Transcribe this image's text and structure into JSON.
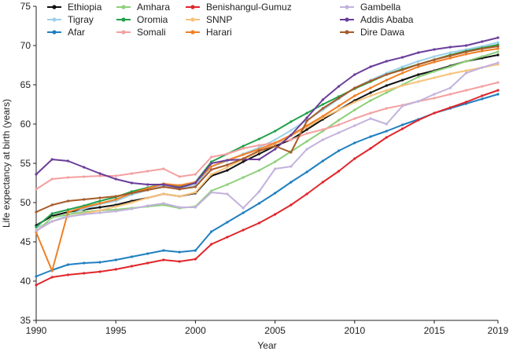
{
  "chart_data": {
    "type": "line",
    "title": "",
    "xlabel": "Year",
    "ylabel": "Life expectancy at birth (years)",
    "xlim": [
      1990,
      2019
    ],
    "ylim": [
      35,
      75
    ],
    "x_ticks": [
      1990,
      1995,
      2000,
      2005,
      2010,
      2015,
      2019
    ],
    "y_ticks": [
      35,
      40,
      45,
      50,
      55,
      60,
      65,
      70,
      75
    ],
    "grid": false,
    "legend_placement": "top",
    "x": [
      1990,
      1991,
      1992,
      1993,
      1994,
      1995,
      1996,
      1997,
      1998,
      1999,
      2000,
      2001,
      2002,
      2003,
      2004,
      2005,
      2006,
      2007,
      2008,
      2009,
      2010,
      2011,
      2012,
      2013,
      2014,
      2015,
      2016,
      2017,
      2018,
      2019
    ],
    "series": [
      {
        "name": "Ethiopia",
        "color": "#111111",
        "values": [
          47.1,
          48.3,
          48.8,
          49.1,
          49.4,
          49.7,
          50.2,
          50.6,
          51.1,
          50.8,
          51.2,
          53.4,
          54.1,
          55.2,
          56.2,
          57.2,
          58.0,
          59.3,
          60.6,
          61.8,
          63.0,
          64.0,
          64.9,
          65.6,
          66.3,
          66.8,
          67.4,
          68.0,
          68.4,
          68.8
        ]
      },
      {
        "name": "Tigray",
        "color": "#9fd0ea",
        "values": [
          46.8,
          47.6,
          48.4,
          49.2,
          49.8,
          50.2,
          51.0,
          51.6,
          52.2,
          51.8,
          52.2,
          54.6,
          55.3,
          56.2,
          57.0,
          58.0,
          59.2,
          60.5,
          61.8,
          63.2,
          64.6,
          65.6,
          66.5,
          67.3,
          68.0,
          68.6,
          69.1,
          69.5,
          69.9,
          70.4
        ]
      },
      {
        "name": "Afar",
        "color": "#1f7fc0",
        "values": [
          40.6,
          41.4,
          42.1,
          42.3,
          42.4,
          42.7,
          43.1,
          43.5,
          43.9,
          43.7,
          43.9,
          46.3,
          47.5,
          48.7,
          49.9,
          51.2,
          52.6,
          53.9,
          55.3,
          56.6,
          57.6,
          58.4,
          59.1,
          59.9,
          60.6,
          61.4,
          62.0,
          62.6,
          63.2,
          63.8
        ]
      },
      {
        "name": "Amhara",
        "color": "#8ed07a",
        "values": [
          46.3,
          48.1,
          48.5,
          48.8,
          49.0,
          49.1,
          49.3,
          49.5,
          49.7,
          49.3,
          49.5,
          51.5,
          52.3,
          53.2,
          54.1,
          55.2,
          56.5,
          57.8,
          59.1,
          60.5,
          61.8,
          63.0,
          64.0,
          65.0,
          66.0,
          66.7,
          67.3,
          68.0,
          68.6,
          69.2
        ]
      },
      {
        "name": "Oromia",
        "color": "#22a04a",
        "values": [
          46.9,
          48.6,
          49.1,
          49.6,
          50.2,
          50.7,
          51.4,
          51.9,
          52.4,
          52.1,
          52.6,
          55.2,
          56.2,
          57.2,
          58.1,
          59.1,
          60.3,
          61.4,
          62.5,
          63.5,
          64.5,
          65.4,
          66.3,
          67.0,
          67.6,
          68.2,
          68.8,
          69.3,
          69.7,
          70.1
        ]
      },
      {
        "name": "Somali",
        "color": "#f4a0a0",
        "values": [
          51.7,
          53.0,
          53.2,
          53.3,
          53.4,
          53.4,
          53.7,
          54.0,
          54.3,
          53.3,
          53.6,
          55.8,
          56.2,
          56.9,
          57.3,
          57.6,
          58.0,
          58.8,
          59.3,
          59.9,
          60.7,
          61.4,
          62.0,
          62.4,
          62.9,
          63.3,
          63.8,
          64.3,
          64.8,
          65.3
        ]
      },
      {
        "name": "Benishangul-Gumuz",
        "color": "#e0262b",
        "values": [
          39.5,
          40.5,
          40.8,
          41.0,
          41.2,
          41.5,
          41.9,
          42.3,
          42.7,
          42.5,
          42.8,
          44.7,
          45.6,
          46.5,
          47.4,
          48.5,
          49.7,
          51.1,
          52.6,
          54.0,
          55.6,
          56.9,
          58.3,
          59.4,
          60.5,
          61.4,
          62.1,
          62.8,
          63.6,
          64.3
        ]
      },
      {
        "name": "SNNP",
        "color": "#f8c27a",
        "values": [
          46.5,
          47.6,
          48.2,
          48.6,
          49.0,
          49.5,
          50.0,
          50.6,
          51.1,
          50.8,
          51.3,
          53.6,
          54.5,
          55.5,
          56.5,
          57.5,
          58.5,
          59.6,
          60.8,
          61.8,
          62.8,
          63.6,
          64.3,
          64.9,
          65.4,
          65.9,
          66.4,
          66.8,
          67.2,
          67.6
        ]
      },
      {
        "name": "Harari",
        "color": "#f07f24",
        "values": [
          46.2,
          41.3,
          48.8,
          49.4,
          49.9,
          50.4,
          51.2,
          51.8,
          52.4,
          52.2,
          52.6,
          54.6,
          55.4,
          56.1,
          56.8,
          57.6,
          58.6,
          59.8,
          61.0,
          62.3,
          63.6,
          64.6,
          65.6,
          66.5,
          67.3,
          67.9,
          68.4,
          68.9,
          69.3,
          69.6
        ]
      },
      {
        "name": "Gambella",
        "color": "#c2b2dd",
        "values": [
          46.4,
          47.6,
          48.2,
          48.5,
          48.7,
          48.9,
          49.2,
          49.6,
          49.9,
          49.4,
          49.4,
          51.3,
          51.1,
          49.3,
          51.4,
          54.3,
          54.6,
          56.8,
          58.0,
          58.9,
          59.8,
          60.7,
          60.0,
          62.3,
          62.9,
          63.8,
          64.6,
          66.5,
          67.2,
          67.8
        ]
      },
      {
        "name": "Addis Ababa",
        "color": "#6a3d9a",
        "values": [
          53.6,
          55.5,
          55.3,
          54.5,
          53.7,
          53.0,
          52.5,
          52.3,
          52.3,
          51.9,
          52.5,
          55.0,
          55.4,
          55.5,
          55.5,
          56.8,
          58.6,
          60.8,
          63.1,
          64.8,
          66.3,
          67.3,
          68.0,
          68.5,
          69.1,
          69.5,
          69.8,
          70.0,
          70.5,
          71.0
        ]
      },
      {
        "name": "Dire Dawa",
        "color": "#a65a28",
        "values": [
          48.8,
          49.7,
          50.2,
          50.4,
          50.6,
          50.8,
          51.2,
          51.6,
          52.0,
          51.7,
          52.0,
          54.2,
          54.8,
          55.6,
          56.6,
          57.2,
          56.4,
          60.4,
          62.0,
          63.3,
          64.6,
          65.5,
          66.3,
          66.9,
          67.6,
          68.2,
          68.7,
          69.2,
          69.6,
          69.9
        ]
      }
    ]
  }
}
